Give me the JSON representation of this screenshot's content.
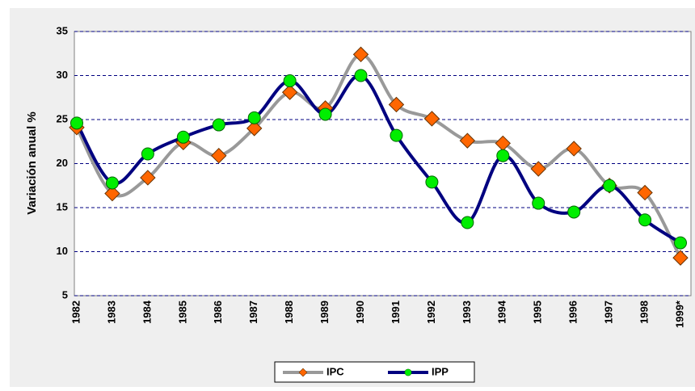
{
  "chart_data": {
    "type": "line",
    "y_label": "Variación anual %",
    "categories": [
      "1982",
      "1983",
      "1984",
      "1985",
      "1986",
      "1987",
      "1988",
      "1989",
      "1990",
      "1991",
      "1992",
      "1993",
      "1994",
      "1995",
      "1996",
      "1997",
      "1998",
      "1999*"
    ],
    "series": [
      {
        "name": "IPC",
        "color": "#999999",
        "marker_color": "#ff6600",
        "marker": "diamond",
        "values": [
          24.1,
          16.6,
          18.4,
          22.4,
          20.9,
          24.0,
          28.1,
          26.3,
          32.4,
          26.7,
          25.1,
          22.6,
          22.3,
          19.4,
          21.7,
          17.5,
          16.7,
          9.3
        ]
      },
      {
        "name": "IPP",
        "color": "#000080",
        "marker_color": "#00ee00",
        "marker": "circle",
        "values": [
          24.6,
          17.8,
          21.1,
          23.0,
          24.4,
          25.2,
          29.4,
          25.6,
          30.0,
          23.2,
          17.9,
          13.3,
          20.9,
          15.5,
          14.5,
          17.5,
          13.6,
          11.0
        ]
      }
    ],
    "ylim": [
      5,
      35
    ],
    "yticks": [
      5,
      10,
      15,
      20,
      25,
      30,
      35
    ],
    "grid": true
  }
}
